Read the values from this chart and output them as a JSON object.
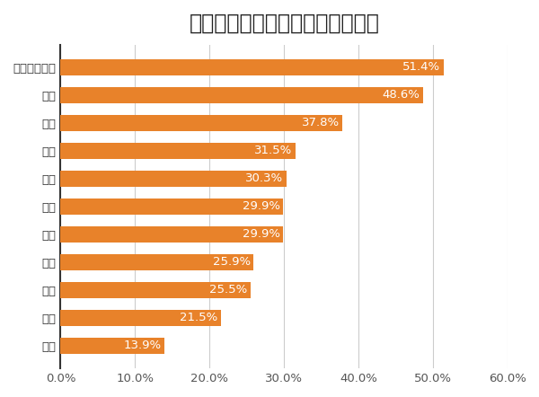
{
  "title": "仕事を通じて解決したい社会課題",
  "categories": [
    "人権",
    "食料",
    "文化",
    "資源",
    "安全",
    "労働",
    "医療",
    "教育",
    "経済",
    "環境",
    "くらし・生活"
  ],
  "values": [
    13.9,
    21.5,
    25.5,
    25.9,
    29.9,
    29.9,
    30.3,
    31.5,
    37.8,
    48.6,
    51.4
  ],
  "bar_color": "#E8822A",
  "label_color": "#FFFFFF",
  "title_fontsize": 17,
  "label_fontsize": 9.5,
  "tick_fontsize": 9.5,
  "xlim": [
    0,
    60
  ],
  "xticks": [
    0,
    10,
    20,
    30,
    40,
    50,
    60
  ],
  "background_color": "#FFFFFF",
  "bar_height": 0.58,
  "grid_color": "#CCCCCC",
  "ylabel_color": "#333333"
}
